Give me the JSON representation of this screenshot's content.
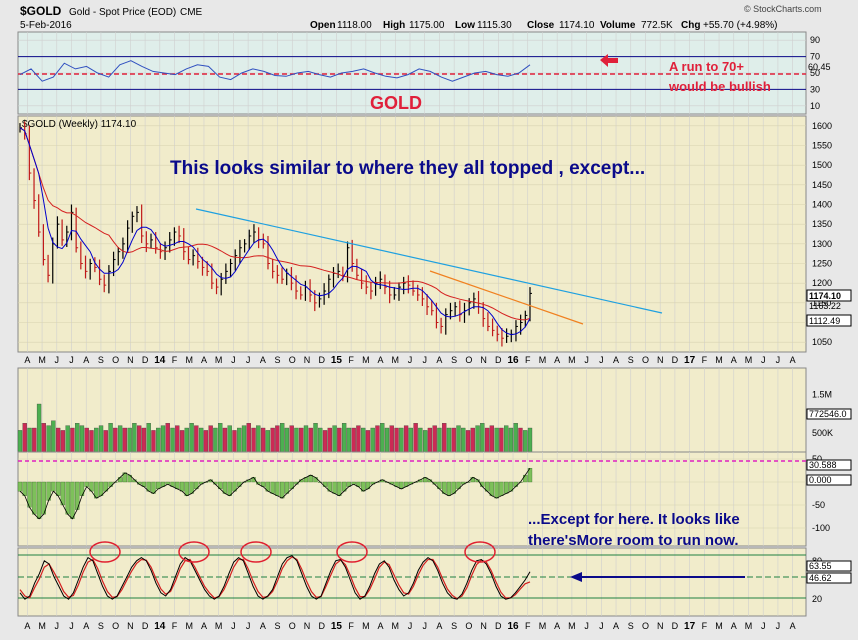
{
  "header": {
    "symbol": "$GOLD",
    "description": "Gold - Spot Price (EOD)",
    "exchange": "CME",
    "date": "5-Feb-2016",
    "open_label": "Open",
    "open": "1118.00",
    "high_label": "High",
    "high": "1175.00",
    "low_label": "Low",
    "low": "1115.30",
    "close_label": "Close",
    "close": "1174.10",
    "volume_label": "Volume",
    "volume": "772.5K",
    "chg_label": "Chg",
    "chg": "+55.70 (+4.98%)",
    "brand": "© StockCharts.com"
  },
  "colors": {
    "price_line": "#000000",
    "ma_fast": "#0000cc",
    "ma_slow": "#d42020",
    "trendline": "#1ea0e0",
    "projection": "#f08020",
    "volume_up": "#4caf50",
    "volume_down": "#cc2a55",
    "annotation_text": "#0a0a8a",
    "rsi_line": "#3050c0",
    "dashed_magenta": "#e020c0",
    "circle": "#e02030",
    "arrow": "#0a0a8a"
  },
  "chart_data": [
    {
      "type": "line",
      "panel": "rsi",
      "yticks": [
        90,
        70,
        50,
        30,
        10
      ],
      "current_values": [
        "60.45"
      ],
      "reference_line": 70,
      "values": [
        48,
        55,
        40,
        45,
        62,
        55,
        58,
        50,
        45,
        60,
        65,
        58,
        52,
        50,
        48,
        55,
        60,
        58,
        45,
        42,
        50,
        55,
        52,
        47,
        46,
        50,
        52,
        48,
        45,
        50,
        52,
        55,
        50,
        46,
        44,
        48,
        55,
        52,
        45,
        40,
        45,
        50,
        52,
        48,
        46,
        50,
        60
      ]
    },
    {
      "type": "line",
      "panel": "price",
      "title": "$GOLD (Weekly) 1174.10",
      "x_tick_labels": [
        "A",
        "M",
        "J",
        "J",
        "A",
        "S",
        "O",
        "N",
        "D",
        "14",
        "F",
        "M",
        "A",
        "M",
        "J",
        "J",
        "A",
        "S",
        "O",
        "N",
        "D",
        "15",
        "F",
        "M",
        "A",
        "M",
        "J",
        "J",
        "A",
        "S",
        "O",
        "N",
        "D",
        "16",
        "F",
        "M",
        "A",
        "M",
        "J",
        "J",
        "A",
        "S",
        "O",
        "N",
        "D",
        "17",
        "F",
        "M",
        "A",
        "M",
        "J",
        "J",
        "A"
      ],
      "yticks": [
        1600,
        1550,
        1500,
        1450,
        1400,
        1350,
        1300,
        1250,
        1200,
        1150,
        1100,
        1050
      ],
      "ylim": [
        1025,
        1625
      ],
      "close_label": "1174.10",
      "ma_label_1": "1163.22",
      "ma_label_2": "1112.49",
      "series": [
        {
          "values": [
            1595,
            1580,
            1480,
            1410,
            1330,
            1260,
            1220,
            1300,
            1350,
            1310,
            1330,
            1380,
            1290,
            1250,
            1230,
            1250,
            1240,
            1210,
            1195,
            1230,
            1260,
            1280,
            1300,
            1340,
            1370,
            1380,
            1320,
            1300,
            1310,
            1290,
            1280,
            1290,
            1310,
            1330,
            1320,
            1280,
            1260,
            1270,
            1255,
            1240,
            1230,
            1200,
            1190,
            1210,
            1230,
            1250,
            1270,
            1290,
            1300,
            1320,
            1330,
            1310,
            1300,
            1250,
            1230,
            1220,
            1210,
            1225,
            1200,
            1180,
            1170,
            1190,
            1170,
            1150,
            1160,
            1180,
            1210,
            1225,
            1230,
            1220,
            1290,
            1250,
            1220,
            1200,
            1190,
            1180,
            1200,
            1210,
            1190,
            1170,
            1170,
            1190,
            1200,
            1195,
            1180,
            1170,
            1160,
            1140,
            1130,
            1100,
            1090,
            1120,
            1130,
            1140,
            1120,
            1130,
            1150,
            1160,
            1140,
            1110,
            1090,
            1080,
            1070,
            1060,
            1065,
            1070,
            1090,
            1100,
            1118,
            1174
          ]
        }
      ],
      "annotation": "This looks similar to where they all topped , except..."
    },
    {
      "type": "bar",
      "panel": "volume",
      "yticks": [
        "1.5M",
        "1.0M",
        "500K"
      ],
      "current_value": "772546.0",
      "values": [
        0.9,
        1.2,
        1.0,
        1.0,
        2.0,
        1.2,
        1.1,
        1.3,
        1.0,
        0.9,
        1.1,
        1.0,
        1.2,
        1.1,
        1.0,
        0.9,
        1.0,
        1.1,
        0.9,
        1.2,
        1.0,
        1.1,
        1.0,
        1.0,
        1.2,
        1.1,
        1.0,
        1.2,
        0.9,
        1.0,
        1.1,
        1.2,
        1.0,
        1.1,
        0.9,
        1.0,
        1.2,
        1.1,
        1.0,
        0.9,
        1.1,
        1.0,
        1.2,
        1.0,
        1.1,
        0.9,
        1.0,
        1.1,
        1.2,
        1.0,
        1.1,
        1.0,
        0.9,
        1.0,
        1.1,
        1.2,
        1.0,
        1.1,
        1.0,
        1.0,
        1.1,
        1.0,
        1.2,
        1.0,
        0.9,
        1.0,
        1.1,
        1.0,
        1.2,
        1.0,
        1.0,
        1.1,
        1.0,
        0.9,
        1.0,
        1.1,
        1.2,
        1.0,
        1.1,
        1.0,
        1.0,
        1.1,
        1.0,
        1.2,
        1.0,
        0.9,
        1.0,
        1.1,
        1.0,
        1.2,
        1.0,
        1.0,
        1.1,
        1.0,
        0.9,
        1.0,
        1.1,
        1.2,
        1.0,
        1.1,
        1.0,
        1.0,
        1.1,
        1.0,
        1.2,
        1.0,
        0.9,
        1.0
      ],
      "up": [
        1,
        0,
        1,
        0,
        1,
        0,
        1,
        1,
        0,
        0,
        1,
        0,
        1,
        1,
        0,
        0,
        1,
        1,
        0,
        1,
        0,
        1,
        0,
        1,
        1,
        0,
        0,
        1,
        0,
        1,
        1,
        0,
        1,
        0,
        0,
        1,
        1,
        0,
        1,
        0,
        0,
        1,
        1,
        0,
        1,
        0,
        1,
        1,
        0,
        0,
        1,
        0,
        1,
        0,
        0,
        1,
        1,
        0,
        1,
        0,
        1,
        0,
        1,
        1,
        0,
        0,
        1,
        0,
        1,
        1,
        0,
        0,
        1,
        0,
        1,
        0,
        1,
        1,
        0,
        0,
        1,
        0,
        1,
        0,
        1,
        1,
        0,
        0,
        1,
        0,
        1,
        0,
        1,
        1,
        0,
        0,
        1,
        1,
        0,
        0,
        1,
        0,
        1,
        1,
        1,
        0,
        1,
        1
      ]
    },
    {
      "type": "bar",
      "panel": "momentum",
      "yticks": [
        50,
        0,
        -50,
        -100
      ],
      "current_values": [
        "30.588",
        "0.000"
      ],
      "values": [
        -20,
        -30,
        -55,
        -70,
        -80,
        -70,
        -40,
        -20,
        -30,
        -50,
        -70,
        -80,
        -60,
        -30,
        -10,
        -20,
        -35,
        -30,
        -20,
        -10,
        0,
        10,
        20,
        15,
        5,
        -5,
        -10,
        -20,
        -25,
        -15,
        -10,
        -5,
        -10,
        -15,
        -20,
        -30,
        -25,
        -15,
        -5,
        0,
        5,
        -5,
        -15,
        -25,
        -30,
        -20,
        -10,
        0,
        5,
        10,
        -5,
        -10,
        -20,
        -25,
        -30,
        -35,
        -25,
        -15,
        -5,
        5,
        10,
        15,
        10,
        0,
        -10,
        -20,
        -25,
        -30,
        -20,
        -10,
        -5,
        -10,
        -20,
        -15,
        -5,
        0,
        5,
        0,
        -5,
        -10,
        -15,
        -10,
        -5,
        0,
        5,
        10,
        5,
        -5,
        -15,
        -25,
        -30,
        -25,
        -15,
        -5,
        0,
        10,
        5,
        -10,
        -20,
        -30,
        -35,
        -30,
        -25,
        -20,
        -10,
        0,
        15,
        30
      ]
    },
    {
      "type": "line",
      "panel": "stochastic",
      "yticks": [
        80,
        20
      ],
      "current_values": [
        "63.55",
        "46.62"
      ],
      "values_fast": [
        30,
        20,
        25,
        45,
        60,
        80,
        75,
        55,
        40,
        25,
        20,
        30,
        50,
        70,
        85,
        80,
        60,
        40,
        25,
        20,
        25,
        40,
        55,
        70,
        80,
        85,
        80,
        65,
        45,
        30,
        25,
        35,
        55,
        75,
        85,
        80,
        65,
        50,
        35,
        25,
        20,
        25,
        40,
        60,
        78,
        85,
        80,
        60,
        40,
        25,
        20,
        25,
        35,
        55,
        75,
        85,
        88,
        80,
        60,
        40,
        25,
        20,
        25,
        45,
        65,
        80,
        82,
        70,
        50,
        30,
        20,
        25,
        40,
        60,
        75,
        80,
        70,
        50,
        35,
        25,
        30,
        45,
        65,
        78,
        85,
        80,
        65,
        45,
        30,
        22,
        20,
        28,
        45,
        65,
        80,
        82,
        75,
        60,
        40,
        25,
        20,
        22,
        30,
        40,
        50,
        63
      ],
      "values_slow": [
        35,
        25,
        22,
        38,
        52,
        70,
        75,
        62,
        48,
        32,
        23,
        26,
        42,
        62,
        78,
        82,
        68,
        48,
        32,
        23,
        24,
        35,
        50,
        64,
        76,
        82,
        81,
        70,
        52,
        36,
        28,
        32,
        48,
        68,
        80,
        82,
        70,
        55,
        40,
        30,
        22,
        24,
        35,
        52,
        70,
        82,
        82,
        67,
        48,
        32,
        23,
        24,
        32,
        48,
        68,
        80,
        86,
        82,
        67,
        48,
        32,
        23,
        24,
        40,
        58,
        75,
        81,
        74,
        57,
        38,
        24,
        24,
        35,
        52,
        70,
        78,
        74,
        58,
        42,
        30,
        28,
        40,
        58,
        73,
        82,
        82,
        70,
        52,
        36,
        26,
        21,
        25,
        38,
        57,
        74,
        81,
        78,
        65,
        47,
        31,
        22,
        22,
        27,
        36,
        44,
        47
      ],
      "circles": 5
    }
  ],
  "annotations": {
    "gold_label": "GOLD",
    "run_note_1": "A run to 70+",
    "run_note_2": "would be bullish",
    "price_note": "This looks similar to where they all topped , except...",
    "stoch_note_1": "...Except for here. It looks like",
    "stoch_note_2": "there'sMore room to run now."
  }
}
